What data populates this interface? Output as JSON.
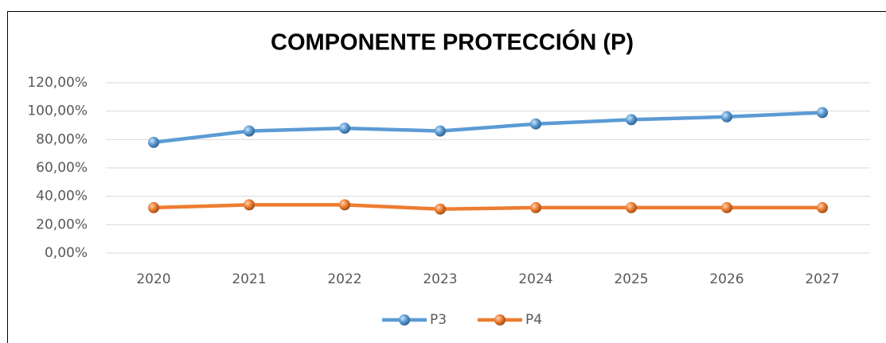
{
  "chart_data": {
    "type": "line",
    "title": "COMPONENTE PROTECCIÓN (P)",
    "categories": [
      "2020",
      "2021",
      "2022",
      "2023",
      "2024",
      "2025",
      "2026",
      "2027"
    ],
    "series": [
      {
        "name": "P3",
        "color": "#5b9bd5",
        "values": [
          78,
          86,
          88,
          86,
          91,
          94,
          96,
          99
        ]
      },
      {
        "name": "P4",
        "color": "#ed7d31",
        "values": [
          32,
          34,
          34,
          31,
          32,
          32,
          32,
          32
        ]
      }
    ],
    "ylim": [
      0,
      120
    ],
    "yticks": [
      {
        "value": 0,
        "label": "0,00%"
      },
      {
        "value": 20,
        "label": "20,00%"
      },
      {
        "value": 40,
        "label": "40,00%"
      },
      {
        "value": 60,
        "label": "60,00%"
      },
      {
        "value": 80,
        "label": "80,00%"
      },
      {
        "value": 100,
        "label": "100,00%"
      },
      {
        "value": 120,
        "label": "120,00%"
      }
    ],
    "grid": true,
    "legend": "bottom"
  }
}
